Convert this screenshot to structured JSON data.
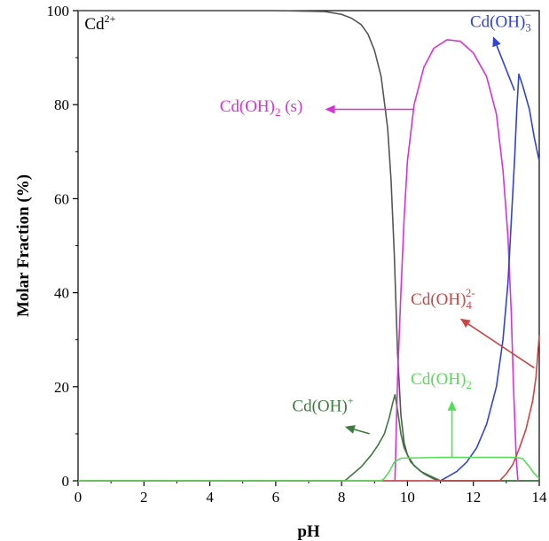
{
  "chart_data": {
    "type": "line",
    "title": "",
    "xlabel": "pH",
    "ylabel": "Molar Fraction (%)",
    "xlim": [
      0,
      14
    ],
    "ylim": [
      0,
      100
    ],
    "xticks": [
      0,
      2,
      4,
      6,
      8,
      10,
      12,
      14
    ],
    "yticks": [
      0,
      20,
      40,
      60,
      80,
      100
    ],
    "grid": false,
    "series": [
      {
        "name": "Cd2+",
        "color": "#555555",
        "points": [
          [
            0,
            100
          ],
          [
            6,
            100
          ],
          [
            7.5,
            99.8
          ],
          [
            8,
            99.2
          ],
          [
            8.3,
            98.4
          ],
          [
            8.6,
            97
          ],
          [
            8.8,
            95
          ],
          [
            9,
            91.5
          ],
          [
            9.2,
            86
          ],
          [
            9.4,
            75
          ],
          [
            9.5,
            64
          ],
          [
            9.6,
            48
          ],
          [
            9.7,
            27
          ],
          [
            9.8,
            14
          ],
          [
            9.9,
            8
          ],
          [
            10,
            5.5
          ],
          [
            10.2,
            3.2
          ],
          [
            10.5,
            1.5
          ],
          [
            10.8,
            0.4
          ],
          [
            11,
            0
          ],
          [
            14,
            0
          ]
        ]
      },
      {
        "name": "Cd(OH)+",
        "color": "#3d7a3d",
        "points": [
          [
            0,
            0
          ],
          [
            8.1,
            0
          ],
          [
            8.3,
            1.2
          ],
          [
            8.6,
            3
          ],
          [
            8.9,
            5.5
          ],
          [
            9.1,
            7.5
          ],
          [
            9.3,
            10
          ],
          [
            9.45,
            13.5
          ],
          [
            9.55,
            16.5
          ],
          [
            9.62,
            18.3
          ],
          [
            9.7,
            15
          ],
          [
            9.8,
            10
          ],
          [
            9.9,
            7
          ],
          [
            10.1,
            4
          ],
          [
            10.4,
            2
          ],
          [
            10.7,
            1
          ],
          [
            11,
            0
          ],
          [
            14,
            0
          ]
        ]
      },
      {
        "name": "Cd(OH)2 (s)",
        "color": "#d633d6",
        "points": [
          [
            9.62,
            0
          ],
          [
            9.7,
            22
          ],
          [
            9.8,
            40
          ],
          [
            9.9,
            56
          ],
          [
            10,
            68
          ],
          [
            10.2,
            80
          ],
          [
            10.5,
            88
          ],
          [
            10.8,
            92
          ],
          [
            11.2,
            93.8
          ],
          [
            11.6,
            93.5
          ],
          [
            12,
            91
          ],
          [
            12.4,
            86
          ],
          [
            12.7,
            78
          ],
          [
            12.9,
            66
          ],
          [
            13.05,
            52
          ],
          [
            13.15,
            36
          ],
          [
            13.22,
            20
          ],
          [
            13.3,
            5
          ],
          [
            13.35,
            0
          ]
        ]
      },
      {
        "name": "Cd(OH)3-",
        "color": "#3344cc",
        "points": [
          [
            11,
            0
          ],
          [
            11.2,
            0.8
          ],
          [
            11.5,
            2
          ],
          [
            11.8,
            4
          ],
          [
            12.1,
            7
          ],
          [
            12.4,
            12
          ],
          [
            12.7,
            20
          ],
          [
            12.9,
            30
          ],
          [
            13.05,
            42
          ],
          [
            13.15,
            55
          ],
          [
            13.25,
            68
          ],
          [
            13.32,
            79
          ],
          [
            13.38,
            86.5
          ],
          [
            13.5,
            84
          ],
          [
            13.7,
            79
          ],
          [
            13.85,
            73
          ],
          [
            14,
            68
          ]
        ]
      },
      {
        "name": "Cd(OH)4 2-",
        "color": "#cc4444",
        "points": [
          [
            0,
            0
          ],
          [
            12.8,
            0
          ],
          [
            13,
            1.5
          ],
          [
            13.2,
            3.5
          ],
          [
            13.4,
            7
          ],
          [
            13.6,
            11
          ],
          [
            13.8,
            17
          ],
          [
            13.9,
            22
          ],
          [
            14,
            31
          ]
        ]
      },
      {
        "name": "Cd(OH)2",
        "color": "#55dd55",
        "points": [
          [
            0,
            0
          ],
          [
            9.2,
            0
          ],
          [
            9.3,
            0.5
          ],
          [
            9.45,
            2
          ],
          [
            9.6,
            4
          ],
          [
            9.8,
            4.8
          ],
          [
            11,
            5
          ],
          [
            12.5,
            5
          ],
          [
            13.3,
            5
          ],
          [
            13.5,
            4.7
          ],
          [
            13.7,
            3
          ],
          [
            13.85,
            1.5
          ],
          [
            14,
            0.5
          ]
        ]
      }
    ],
    "annotations": [
      {
        "id": "cd2",
        "base": "Cd",
        "sup": "2+",
        "sub": "",
        "suffix": "",
        "color": "#000000",
        "x": 0.2,
        "y": 96
      },
      {
        "id": "cdoh2s",
        "base": "Cd(OH)",
        "sup": "",
        "sub": "2",
        "suffix": " (s)",
        "color": "#d633d6",
        "x": 4.3,
        "y": 78.5
      },
      {
        "id": "cdoh3",
        "base": "Cd(OH)",
        "sup": "−",
        "sub": "3",
        "suffix": "",
        "color": "#3344cc",
        "x": 11.9,
        "y": 96.5
      },
      {
        "id": "cdoh4",
        "base": "Cd(OH)",
        "sup": "2-",
        "sub": "4",
        "suffix": "",
        "color": "#cc4444",
        "x": 10.1,
        "y": 37.5
      },
      {
        "id": "cdohplus",
        "base": "Cd(OH)",
        "sup": "+",
        "sub": "",
        "suffix": "",
        "color": "#3d7a3d",
        "x": 6.5,
        "y": 14.8
      },
      {
        "id": "cdoh2aq",
        "base": "Cd(OH)",
        "sup": "",
        "sub": "2",
        "suffix": "",
        "color": "#55dd55",
        "x": 10.1,
        "y": 20.5
      }
    ],
    "arrows": [
      {
        "color": "#d633d6",
        "from": [
          10.2,
          79
        ],
        "to": [
          7.5,
          79
        ]
      },
      {
        "color": "#3344cc",
        "from": [
          13.25,
          83
        ],
        "to": [
          12.6,
          94.5
        ]
      },
      {
        "color": "#cc4444",
        "from": [
          13.85,
          24
        ],
        "to": [
          11.6,
          34.5
        ]
      },
      {
        "color": "#3d7a3d",
        "from": [
          8.85,
          10
        ],
        "to": [
          8.1,
          11.5
        ]
      },
      {
        "color": "#55dd55",
        "from": [
          11.35,
          5
        ],
        "to": [
          11.35,
          17
        ]
      }
    ]
  }
}
